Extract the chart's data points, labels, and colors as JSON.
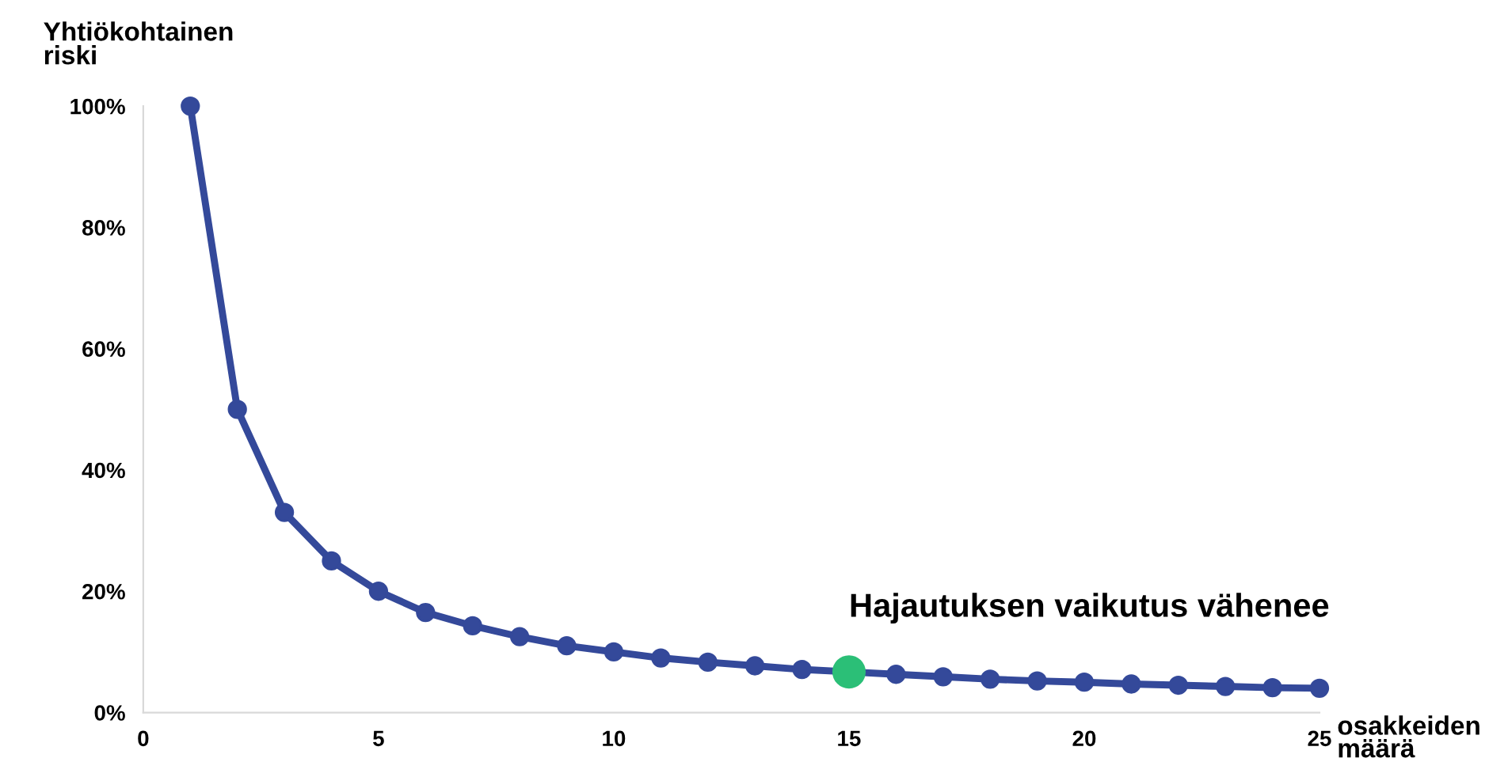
{
  "chart_data": {
    "type": "line",
    "xlabel": "osakkeiden\nmäärä",
    "ylabel": "Yhtiökohtainen\nriski",
    "series": [
      {
        "color": "#34499a",
        "x": [
          1,
          2,
          3,
          4,
          5,
          6,
          7,
          8,
          9,
          10,
          11,
          12,
          13,
          14,
          15,
          16,
          17,
          18,
          19,
          20,
          21,
          22,
          23,
          24,
          25
        ],
        "values": [
          100,
          50,
          33,
          25,
          20,
          16.5,
          14.3,
          12.5,
          11,
          10,
          9,
          8.3,
          7.7,
          7.1,
          6.7,
          6.3,
          5.9,
          5.5,
          5.2,
          5,
          4.7,
          4.5,
          4.3,
          4.1,
          4
        ],
        "marker": "circle",
        "colors": [
          "#34499a",
          "#34499a",
          "#34499a",
          "#34499a",
          "#34499a",
          "#34499a",
          "#34499a",
          "#34499a",
          "#34499a",
          "#34499a",
          "#34499a",
          "#34499a",
          "#34499a",
          "#34499a",
          "#2bbf77",
          "#34499a",
          "#34499a",
          "#34499a",
          "#34499a",
          "#34499a",
          "#34499a",
          "#34499a",
          "#34499a",
          "#34499a",
          "#34499a"
        ]
      }
    ],
    "annotations": [
      {
        "text": "Hajautuksen vaikutus vähenee",
        "x": 15,
        "y": 6.7
      }
    ],
    "xlim": [
      0,
      25
    ],
    "xticks": [
      0,
      5,
      10,
      15,
      20,
      25
    ],
    "ylim": [
      0,
      100
    ],
    "yticks": [
      {
        "value": 0,
        "label": "0%"
      },
      {
        "value": 20,
        "label": "20%"
      },
      {
        "value": 40,
        "label": "40%"
      },
      {
        "value": 60,
        "label": "60%"
      },
      {
        "value": 80,
        "label": "80%"
      },
      {
        "value": 100,
        "label": "100%"
      }
    ],
    "grid": false,
    "legend": false
  }
}
